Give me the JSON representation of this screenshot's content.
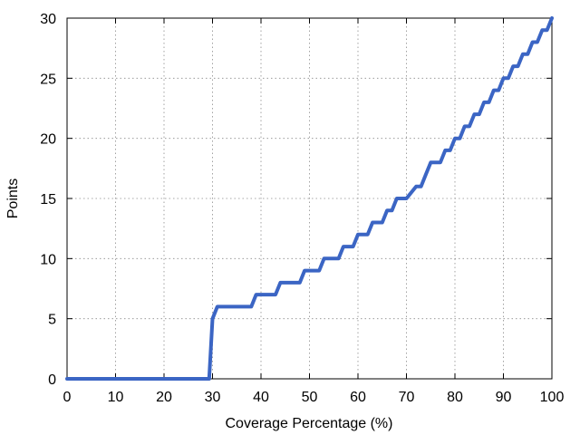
{
  "chart_data": {
    "type": "line",
    "title": "",
    "xlabel": "Coverage Percentage (%)",
    "ylabel": "Points",
    "xlim": [
      0,
      100
    ],
    "ylim": [
      0,
      30
    ],
    "x_ticks": [
      0,
      10,
      20,
      30,
      40,
      50,
      60,
      70,
      80,
      90,
      100
    ],
    "y_ticks": [
      0,
      5,
      10,
      15,
      20,
      25,
      30
    ],
    "x_tick_labels": [
      "0",
      "10",
      "20",
      "30",
      "40",
      "50",
      "60",
      "70",
      "80",
      "90",
      "100"
    ],
    "y_tick_labels": [
      "0",
      "5",
      "10",
      "15",
      "20",
      "25",
      "30"
    ],
    "grid": true,
    "legend": "none",
    "series": [
      {
        "color": "#3b65c4",
        "x": [
          0,
          29.3,
          30,
          31,
          38,
          39,
          43,
          44,
          48,
          49,
          52,
          53,
          56,
          57,
          59,
          60,
          62,
          63,
          65,
          66,
          67,
          68,
          69,
          70,
          72,
          73,
          74,
          75,
          77,
          78,
          79,
          80,
          81,
          82,
          83,
          84,
          85,
          86,
          87,
          88,
          89,
          90,
          91,
          92,
          93,
          94,
          95,
          96,
          97,
          98,
          99,
          100
        ],
        "y": [
          0,
          0,
          5,
          6,
          6,
          7,
          7,
          8,
          8,
          9,
          9,
          10,
          10,
          11,
          11,
          12,
          12,
          13,
          13,
          14,
          14,
          15,
          15,
          15,
          16,
          16,
          17,
          18,
          18,
          19,
          19,
          20,
          20,
          21,
          21,
          22,
          22,
          23,
          23,
          24,
          24,
          25,
          25,
          26,
          26,
          27,
          27,
          28,
          28,
          29,
          29,
          30
        ]
      }
    ]
  }
}
